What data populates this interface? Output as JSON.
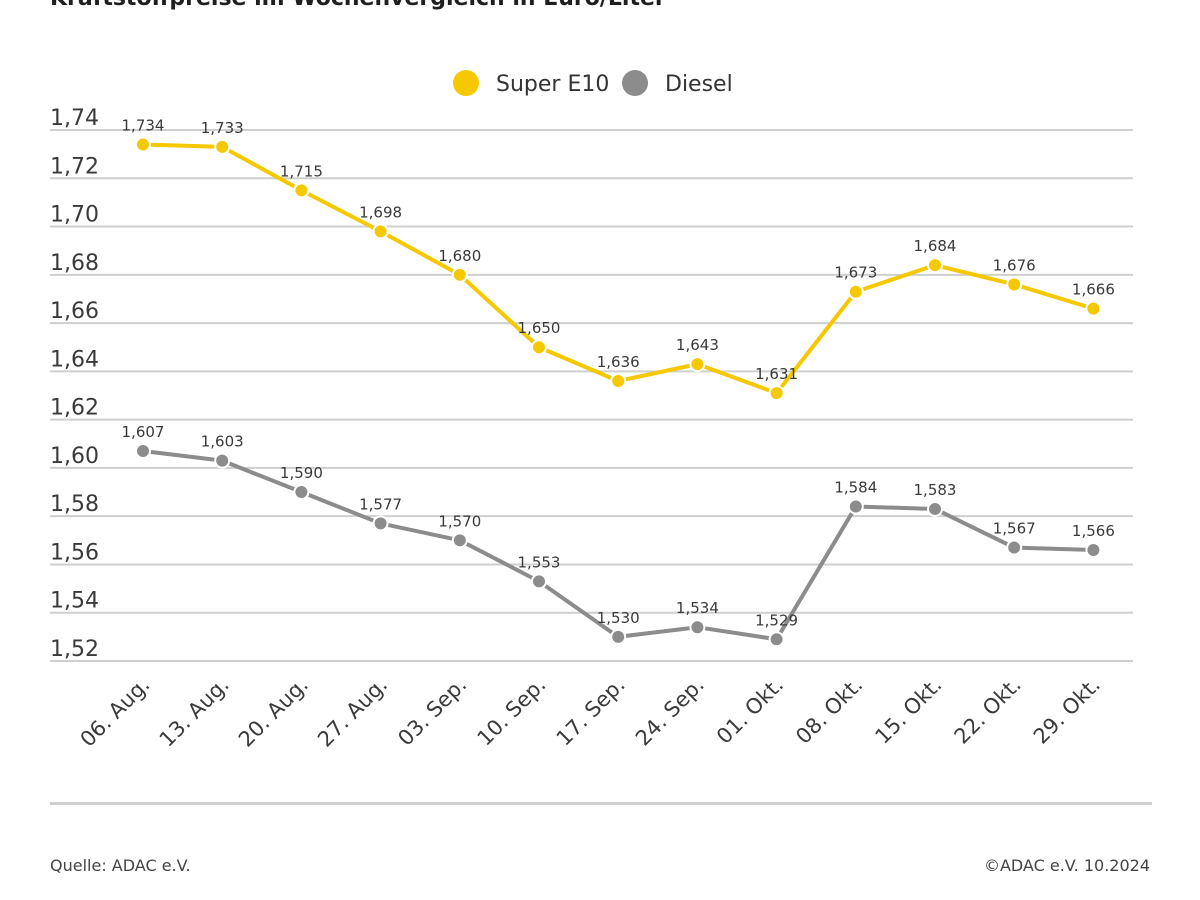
{
  "chart_data": {
    "type": "line",
    "title": "Kraftstoffpreise im Wochenvergleich in Euro/Liter",
    "xlabel": "",
    "ylabel": "",
    "ylim": [
      1.51,
      1.75
    ],
    "yticks": [
      "1,74",
      "1,72",
      "1,70",
      "1,68",
      "1,66",
      "1,64",
      "1,62",
      "1,60",
      "1,58",
      "1,56",
      "1,54",
      "1,52"
    ],
    "ytick_values": [
      1.74,
      1.72,
      1.7,
      1.68,
      1.66,
      1.64,
      1.62,
      1.6,
      1.58,
      1.56,
      1.54,
      1.52
    ],
    "grid": true,
    "legend_position": "top-center",
    "categories": [
      "06. Aug.",
      "13. Aug.",
      "20. Aug.",
      "27. Aug.",
      "03. Sep.",
      "10. Sep.",
      "17. Sep.",
      "24. Sep.",
      "01. Okt.",
      "08. Okt.",
      "15. Okt.",
      "22. Okt.",
      "29. Okt."
    ],
    "series": [
      {
        "name": "Super E10",
        "color": "#F5C800",
        "values": [
          1.734,
          1.733,
          1.715,
          1.698,
          1.68,
          1.65,
          1.636,
          1.643,
          1.631,
          1.673,
          1.684,
          1.676,
          1.666
        ],
        "labels": [
          "1,734",
          "1,733",
          "1,715",
          "1,698",
          "1,680",
          "1,650",
          "1,636",
          "1,643",
          "1,631",
          "1,673",
          "1,684",
          "1,676",
          "1,666"
        ]
      },
      {
        "name": "Diesel",
        "color": "#8C8C8C",
        "values": [
          1.607,
          1.603,
          1.59,
          1.577,
          1.57,
          1.553,
          1.53,
          1.534,
          1.529,
          1.584,
          1.583,
          1.567,
          1.566
        ],
        "labels": [
          "1,607",
          "1,603",
          "1,590",
          "1,577",
          "1,570",
          "1,553",
          "1,530",
          "1,534",
          "1,529",
          "1,584",
          "1,583",
          "1,567",
          "1,566"
        ]
      }
    ]
  },
  "footer": {
    "source": "Quelle: ADAC e.V.",
    "copyright": "©ADAC e.V. 10.2024"
  },
  "colors": {
    "grid": "#CFCFCF",
    "text": "#333333"
  }
}
